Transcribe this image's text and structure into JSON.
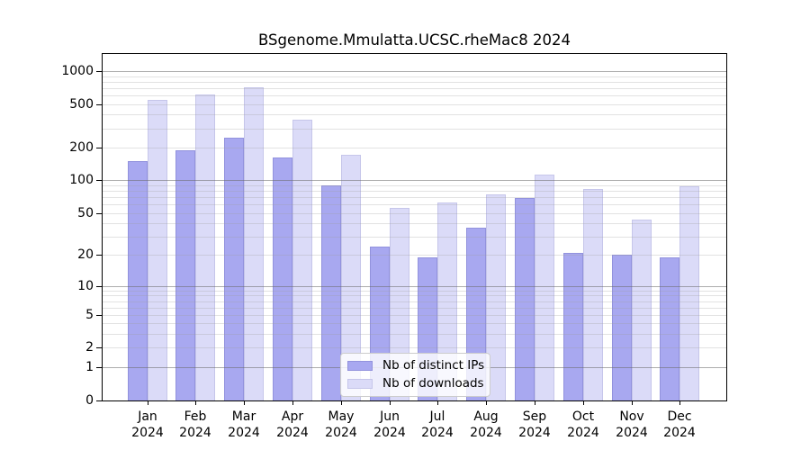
{
  "chart_data": {
    "type": "bar",
    "title": "BSgenome.Mmulatta.UCSC.rheMac8 2024",
    "categories": [
      "Jan",
      "Feb",
      "Mar",
      "Apr",
      "May",
      "Jun",
      "Jul",
      "Aug",
      "Sep",
      "Oct",
      "Nov",
      "Dec"
    ],
    "x_tick_sublabel": "2024",
    "series": [
      {
        "name": "Nb of distinct IPs",
        "color": "#a8a8f0",
        "border_color": "#9292dd",
        "values": [
          150,
          190,
          245,
          162,
          90,
          24,
          19,
          36,
          69,
          21,
          20,
          19
        ]
      },
      {
        "name": "Nb of downloads",
        "color": "#dbdbf8",
        "border_color": "#c6c6ea",
        "values": [
          550,
          615,
          715,
          360,
          172,
          56,
          62,
          74,
          113,
          83,
          43,
          88
        ]
      }
    ],
    "y_ticks": [
      0,
      1,
      2,
      5,
      10,
      20,
      50,
      100,
      200,
      500,
      1000
    ],
    "y_scale": "log10(1+x)",
    "ylim": [
      0,
      1460
    ],
    "xlabel": "",
    "ylabel": "",
    "grid": "log minor + decade major horizontal lines",
    "legend_position": "bottom-center"
  },
  "colors": {
    "background": "#ffffff",
    "axis": "#000000",
    "text": "#000000",
    "grid_major": "rgba(105,105,105,0.55)",
    "grid_minor": "rgba(160,160,160,0.30)",
    "legend_border": "#cccccc",
    "legend_background": "rgba(255,255,255,0.8)"
  }
}
